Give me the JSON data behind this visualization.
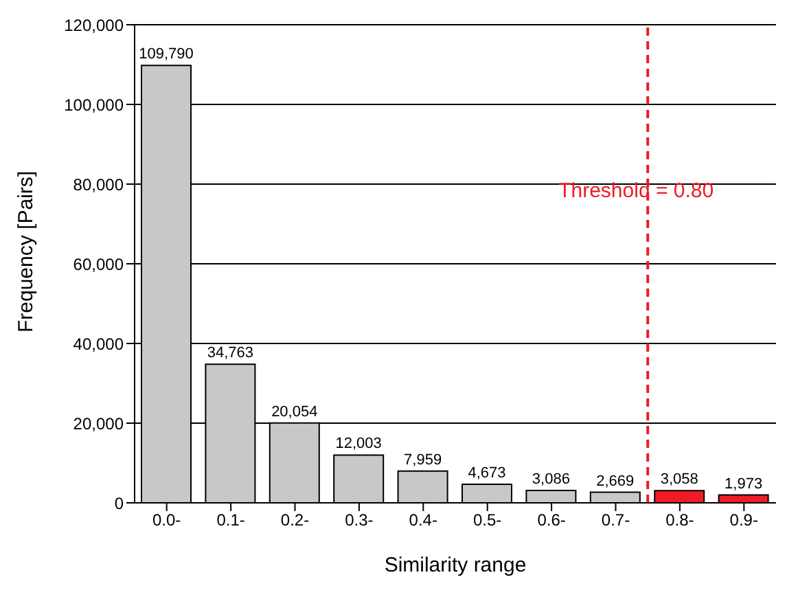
{
  "chart_data": {
    "type": "bar",
    "xlabel": "Similarity range",
    "ylabel": "Frequency [Pairs]",
    "categories": [
      "0.0-",
      "0.1-",
      "0.2-",
      "0.3-",
      "0.4-",
      "0.5-",
      "0.6-",
      "0.7-",
      "0.8-",
      "0.9-"
    ],
    "values": [
      109790,
      34763,
      20054,
      12003,
      7959,
      4673,
      3086,
      2669,
      3058,
      1973
    ],
    "colors": [
      "#c8c8c8",
      "#c8c8c8",
      "#c8c8c8",
      "#c8c8c8",
      "#c8c8c8",
      "#c8c8c8",
      "#c8c8c8",
      "#c8c8c8",
      "#ee1c25",
      "#ee1c25"
    ],
    "ylim": [
      0,
      120000
    ],
    "yticks": [
      {
        "value": 0,
        "label": "0"
      },
      {
        "value": 20000,
        "label": "20,000"
      },
      {
        "value": 40000,
        "label": "40,000"
      },
      {
        "value": 60000,
        "label": "60,000"
      },
      {
        "value": 80000,
        "label": "80,000"
      },
      {
        "value": 100000,
        "label": "100,000"
      },
      {
        "value": 120000,
        "label": "120,000"
      }
    ],
    "grid": "y",
    "value_labels": [
      "109,790",
      "34,763",
      "20,054",
      "12,003",
      "7,959",
      "4,673",
      "3,086",
      "2,669",
      "3,058",
      "1,973"
    ],
    "ref_lines": [
      {
        "axis": "x",
        "value": "0.8-",
        "label": "Threshold = 0.80",
        "color": "#ee1c25",
        "line_style": "dashed"
      }
    ]
  }
}
